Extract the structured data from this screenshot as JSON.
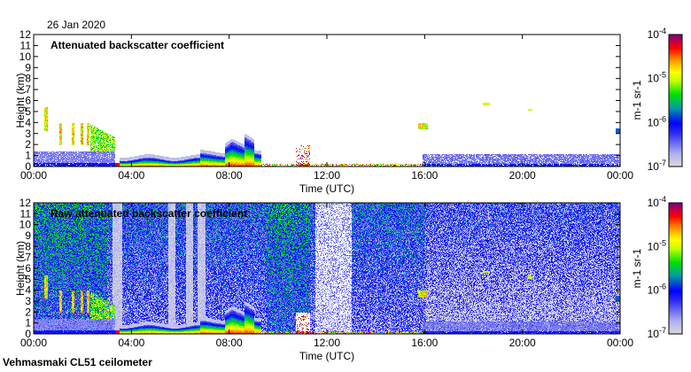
{
  "date": "26 Jan 2020",
  "footer": "Vehmasmaki CL51 ceilometer",
  "chart_data": [
    {
      "type": "heatmap",
      "title": "Attenuated backscatter coefficient",
      "xlabel": "Time (UTC)",
      "ylabel": "Height (km)",
      "xlim": [
        0,
        24
      ],
      "ylim": [
        0,
        12
      ],
      "x_ticks": [
        "00:00",
        "04:00",
        "08:00",
        "12:00",
        "16:00",
        "20:00",
        "00:00"
      ],
      "y_ticks": [
        "0",
        "1",
        "2",
        "3",
        "4",
        "5",
        "6",
        "7",
        "8",
        "9",
        "10",
        "11",
        "12"
      ],
      "colorbar": {
        "label": "m-1 sr-1",
        "scale": "log",
        "range": [
          1e-07,
          0.0001
        ],
        "ticks": [
          "10-7",
          "10-6",
          "10-5",
          "10-4"
        ]
      }
    },
    {
      "type": "heatmap",
      "title": "Raw attenuated backscatter coefficient",
      "xlabel": "Time (UTC)",
      "ylabel": "Height (km)",
      "xlim": [
        0,
        24
      ],
      "ylim": [
        0,
        12
      ],
      "x_ticks": [
        "00:00",
        "04:00",
        "08:00",
        "12:00",
        "16:00",
        "20:00",
        "00:00"
      ],
      "y_ticks": [
        "0",
        "1",
        "2",
        "3",
        "4",
        "5",
        "6",
        "7",
        "8",
        "9",
        "10",
        "11",
        "12"
      ],
      "colorbar": {
        "label": "m-1 sr-1",
        "scale": "log",
        "range": [
          1e-07,
          0.0001
        ],
        "ticks": [
          "10-7",
          "10-6",
          "10-5",
          "10-4"
        ]
      }
    }
  ],
  "colors": {
    "min": "#dcdcdc",
    "low": "#0000ff",
    "mid": "#00e000",
    "high": "#ffff00",
    "max": "#800080"
  }
}
